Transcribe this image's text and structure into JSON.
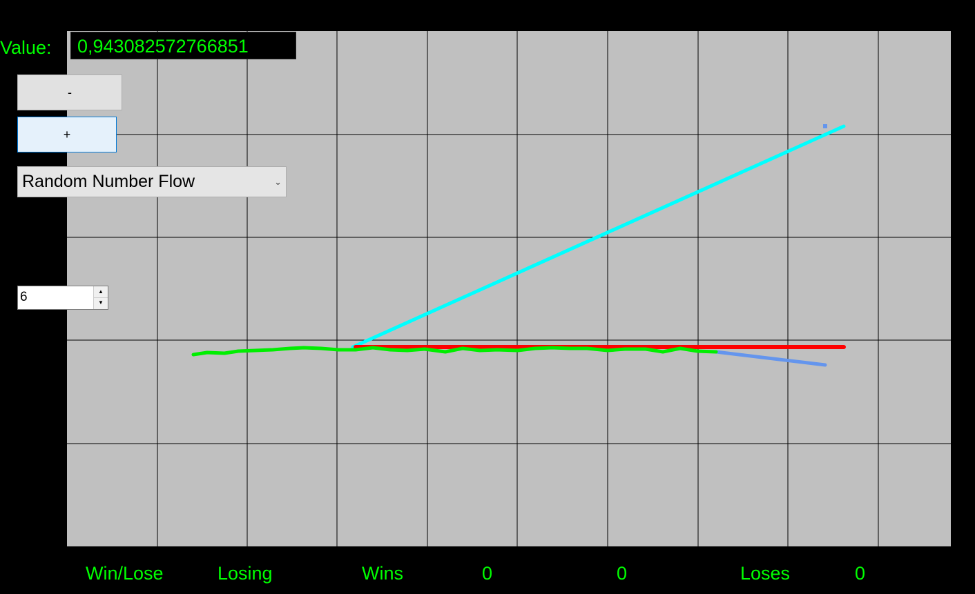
{
  "value": {
    "label": "Value:",
    "text": "0,943082572766851"
  },
  "buttons": {
    "minus_label": "-",
    "plus_label": "+"
  },
  "mode_select": {
    "selected": "Random Number Flow",
    "chevron": "⌄"
  },
  "number_input": {
    "value": "6",
    "up_icon": "▲",
    "down_icon": "▼"
  },
  "stats": {
    "win_lose_label": "Win/Lose",
    "status": "Losing",
    "wins_label": "Wins",
    "wins_value": "0",
    "middle_value": "0",
    "loses_label": "Loses",
    "loses_value": "0"
  },
  "colors": {
    "background": "#000000",
    "plot_area": "#c0c0c0",
    "grid": "#000000",
    "text_green": "#00ff00",
    "line_cyan": "#00ffff",
    "line_red": "#ff0000",
    "line_green": "#00ee00",
    "line_blue": "#6495ed"
  }
}
